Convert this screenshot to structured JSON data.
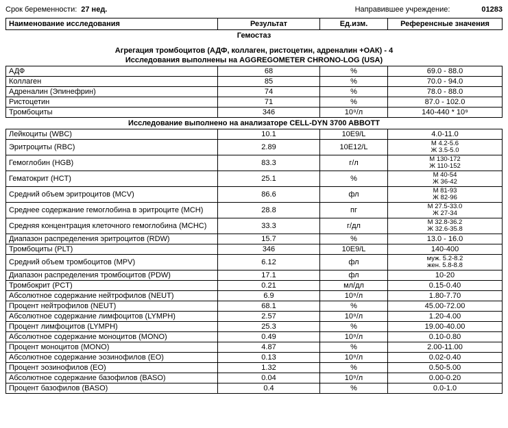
{
  "top": {
    "left_label": "Срок беременности:",
    "left_value": "27 нед.",
    "right_label": "Направившее учреждение:",
    "right_value": "01283"
  },
  "header": {
    "c1": "Наименование исследования",
    "c2": "Результат",
    "c3": "Ед.изм.",
    "c4": "Референсные значения"
  },
  "section1": "Гемостаз",
  "subtitle1": "Агрегация тромбоцитов (АДФ, коллаген, ристоцетин, адреналин +ОАК) - 4",
  "subtitle2": "Исследования выполнены на AGGREGOMETER CHRONO-LOG (USA)",
  "table1": [
    {
      "n": "АДФ",
      "r": "68",
      "u": "%",
      "ref": "69.0 - 88.0"
    },
    {
      "n": "Коллаген",
      "r": "85",
      "u": "%",
      "ref": "70.0 - 94.0"
    },
    {
      "n": "Адреналин (Эпинефрин)",
      "r": "74",
      "u": "%",
      "ref": "78.0 - 88.0"
    },
    {
      "n": "Ристоцетин",
      "r": "71",
      "u": "%",
      "ref": "87.0 - 102.0"
    },
    {
      "n": "Тромбоциты",
      "r": "346",
      "u": "10⁹/л",
      "ref": "140-440 * 10⁹"
    }
  ],
  "subtitle3": "Исследование выполнено на анализаторе CELL-DYN 3700 ABBOTT",
  "table2": [
    {
      "n": "Лейкоциты (WBC)",
      "r": "10.1",
      "u": "10E9/L",
      "ref": "4.0-11.0"
    },
    {
      "n": "Эритроциты (RBC)",
      "r": "2.89",
      "u": "10E12/L",
      "ref": "М 4.2-5.6\nЖ 3.5-5.0"
    },
    {
      "n": "Гемоглобин (HGB)",
      "r": "83.3",
      "u": "г/л",
      "ref": "М 130-172\nЖ 110-152"
    },
    {
      "n": "Гематокрит (HCT)",
      "r": "25.1",
      "u": "%",
      "ref": "М 40-54\nЖ 36-42"
    },
    {
      "n": "Средний объем эритроцитов (MCV)",
      "r": "86.6",
      "u": "фл",
      "ref": "М 81-93\nЖ 82-96"
    },
    {
      "n": "Среднее содержание гемоглобина в эритроците (MCH)",
      "r": "28.8",
      "u": "пг",
      "ref": "М 27.5-33.0\nЖ 27-34"
    },
    {
      "n": "Средняя концентрация клеточного гемоглобина (MCHC)",
      "r": "33.3",
      "u": "г/дл",
      "ref": "М 32.8-36.2\nЖ 32.6-35.8"
    },
    {
      "n": "Диапазон распределения эритроцитов (RDW)",
      "r": "15.7",
      "u": "%",
      "ref": "13.0 - 16.0"
    },
    {
      "n": "Тромбоциты (PLT)",
      "r": "346",
      "u": "10E9/L",
      "ref": "140-400"
    },
    {
      "n": "Средний объем тромбоцитов (MPV)",
      "r": "6.12",
      "u": "фл",
      "ref": "муж. 5.2-8.2\nжен. 5.8-8.8"
    },
    {
      "n": "Диапазон распределения тромбоцитов (PDW)",
      "r": "17.1",
      "u": "фл",
      "ref": "10-20"
    },
    {
      "n": "Тромбокрит (PCT)",
      "r": "0.21",
      "u": "мл/дл",
      "ref": "0.15-0.40"
    },
    {
      "n": "Абсолютное содержание нейтрофилов (NEUT)",
      "r": "6.9",
      "u": "10⁹/л",
      "ref": "1.80-7.70"
    },
    {
      "n": "Процент нейтрофилов (NEUT)",
      "r": "68.1",
      "u": "%",
      "ref": "45.00-72.00"
    },
    {
      "n": "Абсолютное содержание лимфоцитов (LYMPH)",
      "r": "2.57",
      "u": "10⁹/л",
      "ref": "1.20-4.00"
    },
    {
      "n": "Процент лимфоцитов (LYMPH)",
      "r": "25.3",
      "u": "%",
      "ref": "19.00-40.00"
    },
    {
      "n": "Абсолютное содержание моноцитов (MONO)",
      "r": "0.49",
      "u": "10⁹/л",
      "ref": "0.10-0.80"
    },
    {
      "n": "Процент моноцитов (MONO)",
      "r": "4.87",
      "u": "%",
      "ref": "2.00-11.00"
    },
    {
      "n": "Абсолютное содержание эозинофилов (EO)",
      "r": "0.13",
      "u": "10⁹/л",
      "ref": "0.02-0.40"
    },
    {
      "n": "Процент эозинофилов (EO)",
      "r": "1.32",
      "u": "%",
      "ref": "0.50-5.00"
    },
    {
      "n": "Абсолютное содержание базофилов (BASO)",
      "r": "0.04",
      "u": "10⁹/л",
      "ref": "0.00-0.20"
    },
    {
      "n": "Процент базофилов (BASO)",
      "r": "0.4",
      "u": "%",
      "ref": "0.0-1.0"
    }
  ]
}
